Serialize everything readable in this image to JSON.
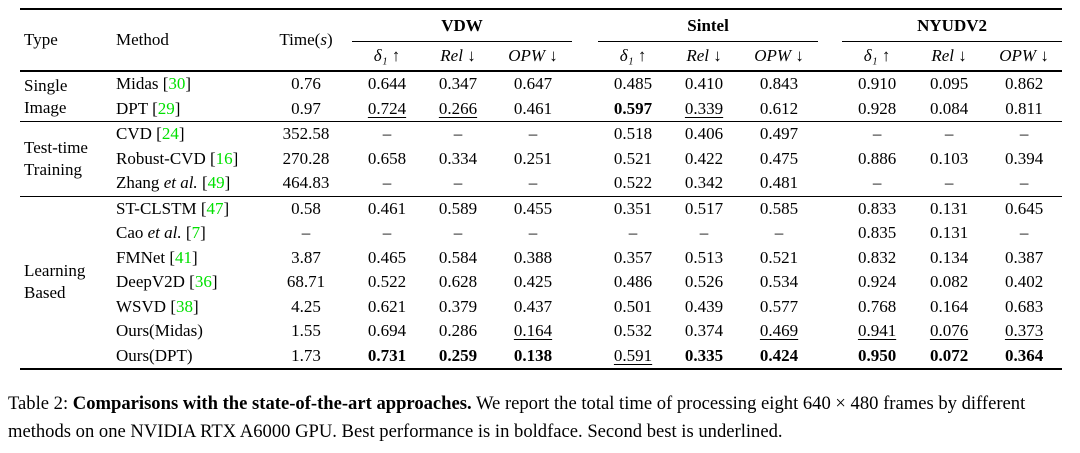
{
  "colors": {
    "citation_green": "#00e000"
  },
  "table": {
    "headers": {
      "type": "Type",
      "method": "Method",
      "time_prefix": "Time(",
      "time_s": "s",
      "time_suffix": ")"
    },
    "groups": [
      "VDW",
      "Sintel",
      "NYUDV2"
    ],
    "subheaders": {
      "delta": "δ₁ ↑",
      "rel": "Rel ↓",
      "opw": "OPW ↓"
    },
    "etal_label": "et al.",
    "missing_symbol": "–",
    "sections": [
      {
        "type_lines": [
          "Single",
          "Image"
        ],
        "rows": [
          {
            "method": "Midas",
            "etal": false,
            "cite": "30",
            "time": "0.76",
            "cells": [
              [
                "0.644",
                ""
              ],
              [
                "0.347",
                ""
              ],
              [
                "0.647",
                ""
              ],
              [
                "0.485",
                ""
              ],
              [
                "0.410",
                ""
              ],
              [
                "0.843",
                ""
              ],
              [
                "0.910",
                ""
              ],
              [
                "0.095",
                ""
              ],
              [
                "0.862",
                ""
              ]
            ]
          },
          {
            "method": "DPT",
            "etal": false,
            "cite": "29",
            "time": "0.97",
            "cells": [
              [
                "0.724",
                "u"
              ],
              [
                "0.266",
                "u"
              ],
              [
                "0.461",
                ""
              ],
              [
                "0.597",
                "b"
              ],
              [
                "0.339",
                "u"
              ],
              [
                "0.612",
                ""
              ],
              [
                "0.928",
                ""
              ],
              [
                "0.084",
                ""
              ],
              [
                "0.811",
                ""
              ]
            ]
          }
        ]
      },
      {
        "type_lines": [
          "Test-time",
          "Training"
        ],
        "rows": [
          {
            "method": "CVD",
            "etal": false,
            "cite": "24",
            "time": "352.58",
            "cells": [
              [
                "–",
                ""
              ],
              [
                "–",
                ""
              ],
              [
                "–",
                ""
              ],
              [
                "0.518",
                ""
              ],
              [
                "0.406",
                ""
              ],
              [
                "0.497",
                ""
              ],
              [
                "–",
                ""
              ],
              [
                "–",
                ""
              ],
              [
                "–",
                ""
              ]
            ]
          },
          {
            "method": "Robust-CVD",
            "etal": false,
            "cite": "16",
            "time": "270.28",
            "cells": [
              [
                "0.658",
                ""
              ],
              [
                "0.334",
                ""
              ],
              [
                "0.251",
                ""
              ],
              [
                "0.521",
                ""
              ],
              [
                "0.422",
                ""
              ],
              [
                "0.475",
                ""
              ],
              [
                "0.886",
                ""
              ],
              [
                "0.103",
                ""
              ],
              [
                "0.394",
                ""
              ]
            ]
          },
          {
            "method": "Zhang",
            "etal": true,
            "cite": "49",
            "time": "464.83",
            "cells": [
              [
                "–",
                ""
              ],
              [
                "–",
                ""
              ],
              [
                "–",
                ""
              ],
              [
                "0.522",
                ""
              ],
              [
                "0.342",
                ""
              ],
              [
                "0.481",
                ""
              ],
              [
                "–",
                ""
              ],
              [
                "–",
                ""
              ],
              [
                "–",
                ""
              ]
            ]
          }
        ]
      },
      {
        "type_lines": [
          "Learning",
          "Based"
        ],
        "rows": [
          {
            "method": "ST-CLSTM",
            "etal": false,
            "cite": "47",
            "time": "0.58",
            "cells": [
              [
                "0.461",
                ""
              ],
              [
                "0.589",
                ""
              ],
              [
                "0.455",
                ""
              ],
              [
                "0.351",
                ""
              ],
              [
                "0.517",
                ""
              ],
              [
                "0.585",
                ""
              ],
              [
                "0.833",
                ""
              ],
              [
                "0.131",
                ""
              ],
              [
                "0.645",
                ""
              ]
            ]
          },
          {
            "method": "Cao",
            "etal": true,
            "cite": "7",
            "time": "–",
            "cells": [
              [
                "–",
                ""
              ],
              [
                "–",
                ""
              ],
              [
                "–",
                ""
              ],
              [
                "–",
                ""
              ],
              [
                "–",
                ""
              ],
              [
                "–",
                ""
              ],
              [
                "0.835",
                ""
              ],
              [
                "0.131",
                ""
              ],
              [
                "–",
                ""
              ]
            ]
          },
          {
            "method": "FMNet",
            "etal": false,
            "cite": "41",
            "time": "3.87",
            "cells": [
              [
                "0.465",
                ""
              ],
              [
                "0.584",
                ""
              ],
              [
                "0.388",
                ""
              ],
              [
                "0.357",
                ""
              ],
              [
                "0.513",
                ""
              ],
              [
                "0.521",
                ""
              ],
              [
                "0.832",
                ""
              ],
              [
                "0.134",
                ""
              ],
              [
                "0.387",
                ""
              ]
            ]
          },
          {
            "method": "DeepV2D",
            "etal": false,
            "cite": "36",
            "time": "68.71",
            "cells": [
              [
                "0.522",
                ""
              ],
              [
                "0.628",
                ""
              ],
              [
                "0.425",
                ""
              ],
              [
                "0.486",
                ""
              ],
              [
                "0.526",
                ""
              ],
              [
                "0.534",
                ""
              ],
              [
                "0.924",
                ""
              ],
              [
                "0.082",
                ""
              ],
              [
                "0.402",
                ""
              ]
            ]
          },
          {
            "method": "WSVD",
            "etal": false,
            "cite": "38",
            "time": "4.25",
            "cells": [
              [
                "0.621",
                ""
              ],
              [
                "0.379",
                ""
              ],
              [
                "0.437",
                ""
              ],
              [
                "0.501",
                ""
              ],
              [
                "0.439",
                ""
              ],
              [
                "0.577",
                ""
              ],
              [
                "0.768",
                ""
              ],
              [
                "0.164",
                ""
              ],
              [
                "0.683",
                ""
              ]
            ]
          },
          {
            "method": "Ours(Midas)",
            "etal": false,
            "cite": "",
            "time": "1.55",
            "cells": [
              [
                "0.694",
                ""
              ],
              [
                "0.286",
                ""
              ],
              [
                "0.164",
                "u"
              ],
              [
                "0.532",
                ""
              ],
              [
                "0.374",
                ""
              ],
              [
                "0.469",
                "u"
              ],
              [
                "0.941",
                "u"
              ],
              [
                "0.076",
                "u"
              ],
              [
                "0.373",
                "u"
              ]
            ]
          },
          {
            "method": "Ours(DPT)",
            "etal": false,
            "cite": "",
            "time": "1.73",
            "cells": [
              [
                "0.731",
                "b"
              ],
              [
                "0.259",
                "b"
              ],
              [
                "0.138",
                "b"
              ],
              [
                "0.591",
                "u"
              ],
              [
                "0.335",
                "b"
              ],
              [
                "0.424",
                "b"
              ],
              [
                "0.950",
                "b"
              ],
              [
                "0.072",
                "b"
              ],
              [
                "0.364",
                "b"
              ]
            ]
          }
        ]
      }
    ]
  },
  "caption": {
    "prefix": "Table 2: ",
    "bold": "Comparisons with the state-of-the-art approaches.",
    "rest": " We report the total time of processing eight 640 × 480 frames by different methods on one NVIDIA RTX A6000 GPU. Best performance is in boldface. Second best is underlined."
  }
}
